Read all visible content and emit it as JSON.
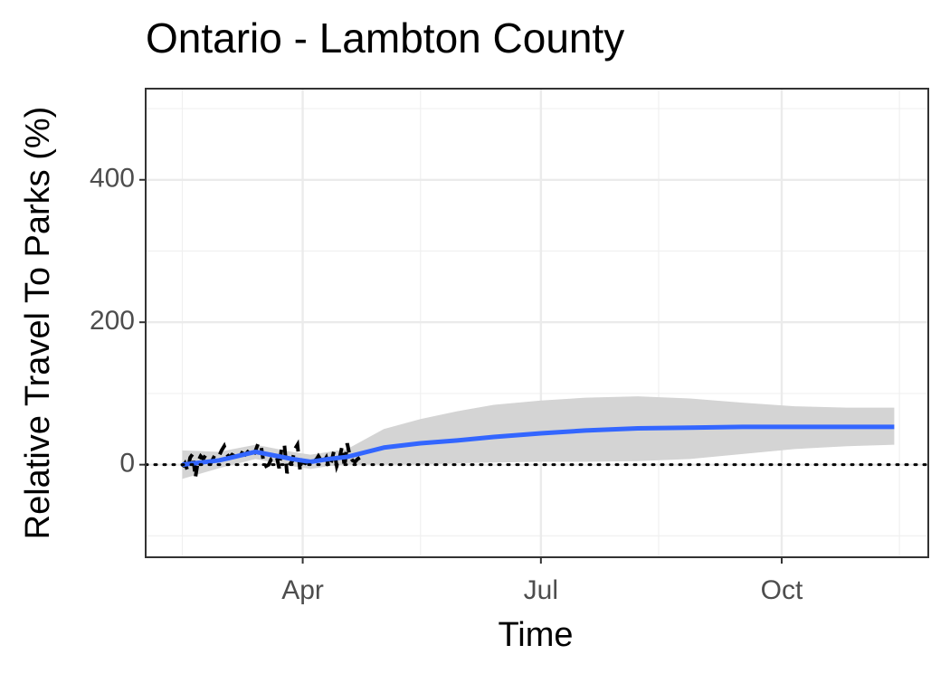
{
  "chart_data": {
    "type": "line",
    "title": "Ontario - Lambton County",
    "x_label": "Time",
    "y_label": "Relative Travel To Parks (%)",
    "xlim": [
      32,
      331
    ],
    "xticks": [
      {
        "value": 92,
        "label": "Apr"
      },
      {
        "value": 183,
        "label": "Jul"
      },
      {
        "value": 275,
        "label": "Oct"
      }
    ],
    "xminor": [
      46,
      137,
      228,
      320
    ],
    "ylim": [
      -130,
      528
    ],
    "yticks": [
      0,
      200,
      400
    ],
    "yminor": [
      -100,
      100,
      300,
      500
    ],
    "grid": true,
    "reference_line": 0,
    "observed": {
      "color": "#000000",
      "dashed": true,
      "x": [
        46,
        47,
        48,
        49,
        50,
        51,
        52,
        53,
        54,
        55,
        56,
        57,
        58,
        59,
        60,
        61,
        62,
        63,
        64,
        65,
        66,
        67,
        68,
        69,
        70,
        71,
        72,
        73,
        74,
        75,
        76,
        77,
        78,
        79,
        80,
        81,
        82,
        83,
        84,
        85,
        86,
        87,
        88,
        89,
        90,
        91,
        92,
        93,
        94,
        95,
        96,
        97,
        98,
        99,
        100,
        101,
        102,
        103,
        104,
        105,
        106,
        107,
        108,
        109,
        110,
        111,
        112,
        113,
        114
      ],
      "values": [
        -3,
        2,
        -8,
        10,
        15,
        -18,
        5,
        12,
        8,
        14,
        5,
        3,
        10,
        8,
        12,
        20,
        26,
        15,
        10,
        14,
        12,
        15,
        18,
        16,
        14,
        18,
        15,
        12,
        20,
        30,
        28,
        5,
        -2,
        0,
        8,
        10,
        12,
        -5,
        25,
        28,
        -12,
        0,
        5,
        22,
        28,
        -8,
        5,
        2,
        4,
        8,
        10,
        6,
        12,
        6,
        4,
        10,
        -4,
        5,
        20,
        -2,
        8,
        25,
        -3,
        30,
        12,
        6,
        4,
        8,
        10
      ]
    },
    "smooth": {
      "color": "#3366ff",
      "band_color": "#d4d4d4",
      "x": [
        46,
        60,
        74,
        88,
        95,
        102,
        109,
        123,
        137,
        151,
        165,
        183,
        200,
        220,
        240,
        260,
        280,
        300,
        318
      ],
      "values": [
        0,
        6,
        18,
        8,
        4,
        8,
        11,
        24,
        30,
        34,
        39,
        44,
        48,
        51,
        52,
        53,
        53,
        53,
        53
      ],
      "lower": [
        -20,
        -5,
        8,
        -2,
        -6,
        -2,
        0,
        0,
        0,
        2,
        3,
        4,
        4,
        5,
        8,
        15,
        22,
        26,
        28
      ],
      "upper": [
        20,
        18,
        28,
        18,
        14,
        18,
        22,
        50,
        64,
        75,
        84,
        90,
        94,
        96,
        93,
        87,
        82,
        80,
        80
      ]
    }
  }
}
